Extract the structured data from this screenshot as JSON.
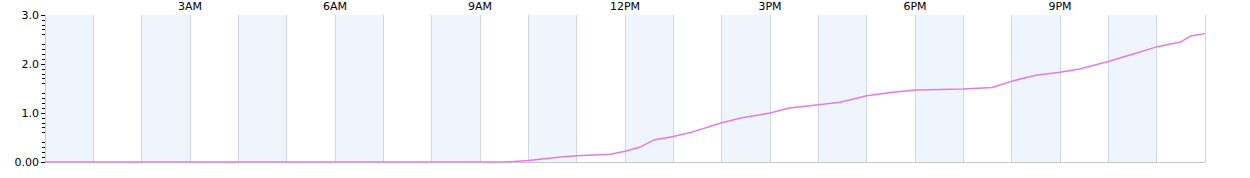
{
  "chart_data": {
    "type": "line",
    "x": [
      0,
      9.5,
      10,
      10.67,
      11,
      11.7,
      12,
      12.3,
      12.6,
      13,
      13.35,
      14,
      14.4,
      15,
      15.4,
      16,
      16.45,
      17,
      17.5,
      18,
      19,
      19.6,
      20,
      20.5,
      21,
      21.4,
      22,
      22.5,
      23,
      23.5,
      23.7,
      24
    ],
    "values": [
      0,
      0,
      0.03,
      0.1,
      0.13,
      0.16,
      0.22,
      0.3,
      0.45,
      0.52,
      0.6,
      0.8,
      0.9,
      1.0,
      1.1,
      1.17,
      1.22,
      1.35,
      1.42,
      1.47,
      1.49,
      1.52,
      1.65,
      1.77,
      1.83,
      1.9,
      2.05,
      2.2,
      2.35,
      2.45,
      2.57,
      2.62
    ],
    "color": "#e37be6",
    "xlim": [
      0,
      24
    ],
    "xticks": [
      {
        "value": 3,
        "label": "3AM"
      },
      {
        "value": 6,
        "label": "6AM"
      },
      {
        "value": 9,
        "label": "9AM"
      },
      {
        "value": 12,
        "label": "12PM"
      },
      {
        "value": 15,
        "label": "3PM"
      },
      {
        "value": 18,
        "label": "6PM"
      },
      {
        "value": 21,
        "label": "9PM"
      }
    ],
    "ylim": [
      0,
      3
    ],
    "yticks": [
      {
        "value": 0,
        "label": "0.00"
      },
      {
        "value": 1,
        "label": "1.0"
      },
      {
        "value": 2,
        "label": "2.0"
      },
      {
        "value": 3,
        "label": "3.0"
      }
    ],
    "grid": true
  }
}
